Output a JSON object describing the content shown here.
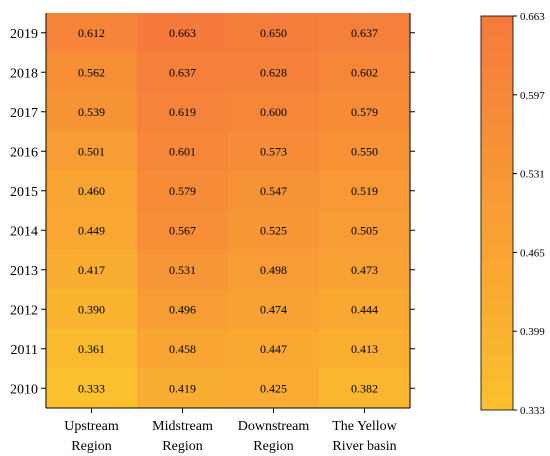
{
  "chart_data": {
    "type": "heatmap",
    "title": "",
    "xlabel": "",
    "ylabel": "",
    "categories": [
      "Upstream Region",
      "Midstream Region",
      "Downstream Region",
      "The Yellow River basin"
    ],
    "category_lines": [
      [
        "Upstream",
        "Region"
      ],
      [
        "Midstream",
        "Region"
      ],
      [
        "Downstream",
        "Region"
      ],
      [
        "The Yellow",
        "River basin"
      ]
    ],
    "years": [
      "2019",
      "2018",
      "2017",
      "2016",
      "2015",
      "2014",
      "2013",
      "2012",
      "2011",
      "2010"
    ],
    "values": [
      [
        "0.612",
        "0.663",
        "0.650",
        "0.637"
      ],
      [
        "0.562",
        "0.637",
        "0.628",
        "0.602"
      ],
      [
        "0.539",
        "0.619",
        "0.600",
        "0.579"
      ],
      [
        "0.501",
        "0.601",
        "0.573",
        "0.550"
      ],
      [
        "0.460",
        "0.579",
        "0.547",
        "0.519"
      ],
      [
        "0.449",
        "0.567",
        "0.525",
        "0.505"
      ],
      [
        "0.417",
        "0.531",
        "0.498",
        "0.473"
      ],
      [
        "0.390",
        "0.496",
        "0.474",
        "0.444"
      ],
      [
        "0.361",
        "0.458",
        "0.447",
        "0.413"
      ],
      [
        "0.333",
        "0.419",
        "0.425",
        "0.382"
      ]
    ],
    "colorbar": {
      "min": 0.333,
      "max": 0.663,
      "ticks": [
        "0.663",
        "0.597",
        "0.531",
        "0.465",
        "0.399",
        "0.333"
      ],
      "low_color": "#fbc02d",
      "high_color": "#f57a3c"
    },
    "grid": false
  }
}
